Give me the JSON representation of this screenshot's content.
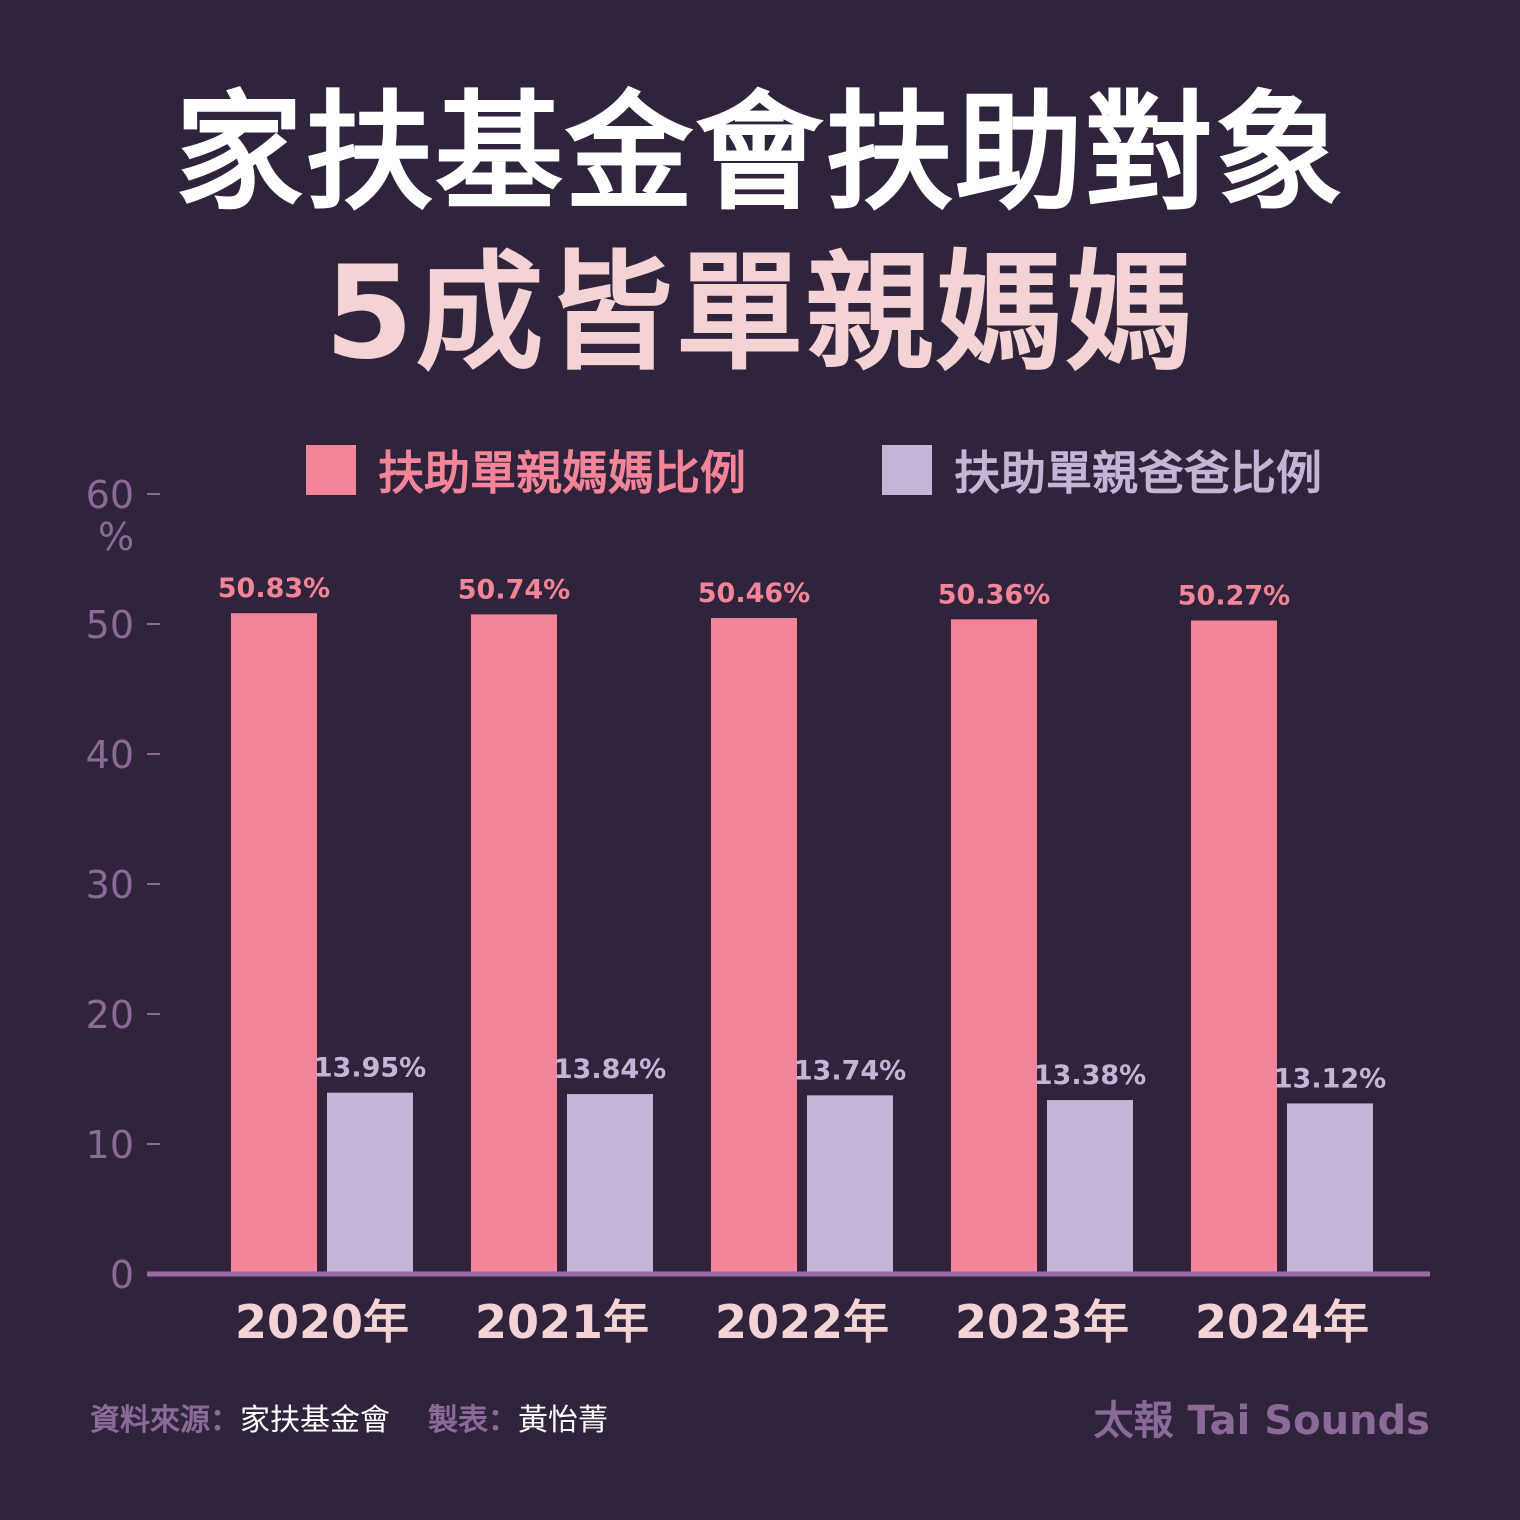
{
  "title": {
    "line1": "家扶基金會扶助對象",
    "line2": "5成皆單親媽媽"
  },
  "colors": {
    "background": "#30243d",
    "mother": "#f48498",
    "father": "#c4b5d6",
    "axis": "#9b6aa4",
    "tick_text": "#8a6a98",
    "category_text": "#f3d3d3"
  },
  "chart_data": {
    "type": "bar",
    "categories": [
      "2020年",
      "2021年",
      "2022年",
      "2023年",
      "2024年"
    ],
    "series": [
      {
        "name": "扶助單親媽媽比例",
        "values": [
          50.83,
          50.74,
          50.46,
          50.36,
          50.27
        ],
        "labels": [
          "50.83%",
          "50.74%",
          "50.46%",
          "50.36%",
          "50.27%"
        ]
      },
      {
        "name": "扶助單親爸爸比例",
        "values": [
          13.95,
          13.84,
          13.74,
          13.38,
          13.12
        ],
        "labels": [
          "13.95%",
          "13.84%",
          "13.74%",
          "13.38%",
          "13.12%"
        ]
      }
    ],
    "yticks": [
      0,
      10,
      20,
      30,
      40,
      50,
      60
    ],
    "ytick_labels": [
      "0",
      "10",
      "20",
      "30",
      "40",
      "50",
      "60"
    ],
    "yunit": "%",
    "ylim": [
      0,
      60
    ],
    "legend_position": "top",
    "grid": false
  },
  "footer": {
    "source_key": "資料來源：",
    "source_value": "家扶基金會",
    "maker_key": "製表：",
    "maker_value": "黃怡菁",
    "brand": "太報 Tai Sounds"
  }
}
